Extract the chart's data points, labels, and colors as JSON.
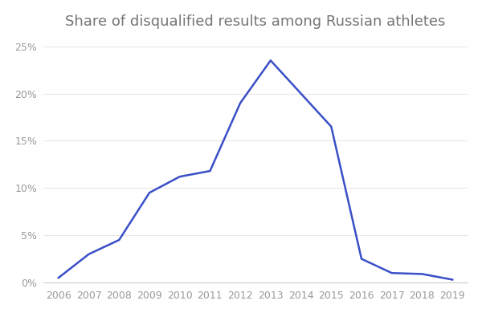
{
  "title": "Share of disqualified results among Russian athletes",
  "years": [
    2006,
    2007,
    2008,
    2009,
    2010,
    2011,
    2012,
    2013,
    2014,
    2015,
    2016,
    2017,
    2018,
    2019
  ],
  "values": [
    0.005,
    0.03,
    0.045,
    0.095,
    0.112,
    0.118,
    0.19,
    0.235,
    0.2,
    0.165,
    0.025,
    0.01,
    0.009,
    0.003
  ],
  "line_color": "#3a4fc7",
  "background_color": "#ffffff",
  "title_color": "#757575",
  "tick_color": "#999999",
  "grid_color": "#e8e8e8",
  "bottom_spine_color": "#cccccc",
  "ylim": [
    0,
    0.265
  ],
  "yticks": [
    0,
    0.05,
    0.1,
    0.15,
    0.2,
    0.25
  ],
  "ytick_labels": [
    "0%",
    "5%",
    "10%",
    "15%",
    "20%",
    "25%"
  ],
  "title_fontsize": 13,
  "tick_fontsize": 9,
  "line_width": 1.8
}
